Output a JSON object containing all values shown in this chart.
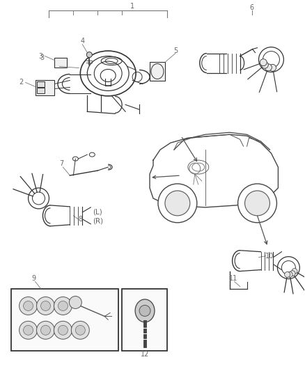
{
  "bg_color": "#ffffff",
  "fig_width": 4.38,
  "fig_height": 5.33,
  "dpi": 100,
  "label_color": "#666666",
  "line_color": "#777777",
  "draw_color": "#333333",
  "fs": 7.5
}
